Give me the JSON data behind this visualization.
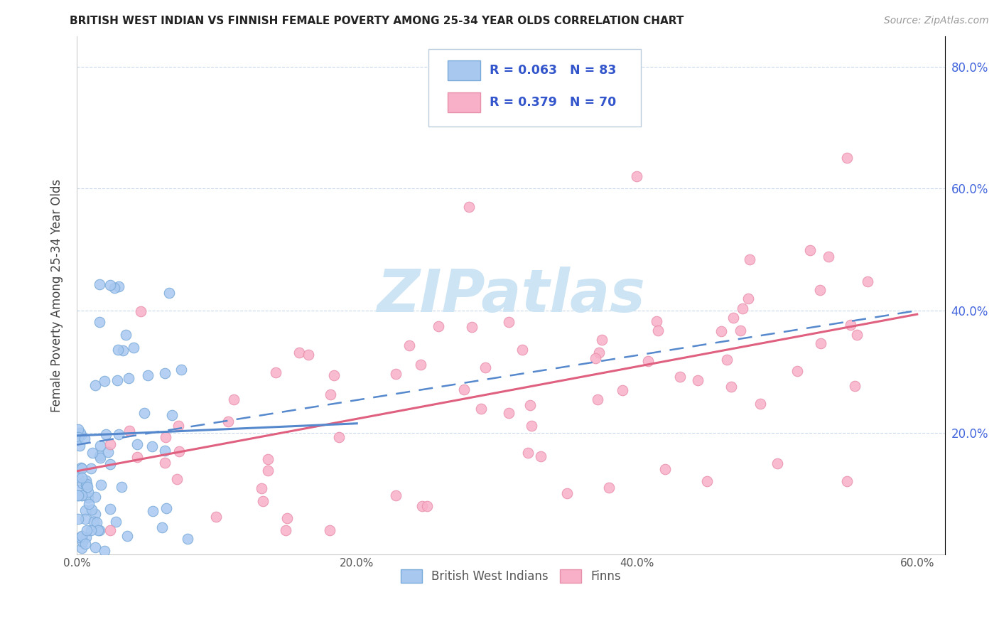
{
  "title": "BRITISH WEST INDIAN VS FINNISH FEMALE POVERTY AMONG 25-34 YEAR OLDS CORRELATION CHART",
  "source": "Source: ZipAtlas.com",
  "ylabel": "Female Poverty Among 25-34 Year Olds",
  "xlim": [
    0.0,
    0.62
  ],
  "ylim": [
    0.0,
    0.85
  ],
  "xtick_labels": [
    "0.0%",
    "20.0%",
    "40.0%",
    "60.0%"
  ],
  "xtick_vals": [
    0.0,
    0.2,
    0.4,
    0.6
  ],
  "ytick_labels": [
    "20.0%",
    "40.0%",
    "60.0%",
    "80.0%"
  ],
  "ytick_vals": [
    0.2,
    0.4,
    0.6,
    0.8
  ],
  "legend1_label": "British West Indians",
  "legend2_label": "Finns",
  "R1": 0.063,
  "N1": 83,
  "R2": 0.379,
  "N2": 70,
  "color1": "#a8c8f0",
  "color2": "#f8b0c8",
  "color1_edge": "#7aaad8",
  "color2_edge": "#e890aa",
  "line1_color": "#5588cc",
  "line2_color": "#e06080",
  "watermark_color": "#cce4f4",
  "background_color": "#ffffff",
  "bwi_scatter_seed": 42,
  "finn_scatter_seed": 99
}
